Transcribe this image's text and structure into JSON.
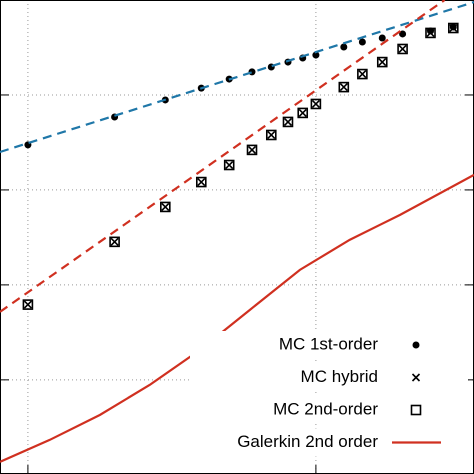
{
  "chart_data": {
    "type": "line",
    "log_x": true,
    "log_y": true,
    "grid": true,
    "legend": "lower right",
    "xlim": [
      0.8,
      35.4
    ],
    "ylim": [
      0.000102,
      10
    ],
    "xticks": [
      1,
      10
    ],
    "yticks": [
      0.001,
      0.01,
      0.1,
      1
    ],
    "series": [
      {
        "name": "MC 1st-order",
        "style": "dot",
        "color": "#000000",
        "x": [
          1,
          2,
          3,
          4,
          5,
          6,
          7,
          8,
          9,
          10,
          12.5,
          14.5,
          17,
          20,
          25,
          30
        ],
        "values": [
          0.298,
          0.586,
          0.886,
          1.18,
          1.47,
          1.75,
          1.97,
          2.22,
          2.45,
          2.63,
          3.2,
          3.61,
          3.98,
          4.39,
          4.72,
          5.2
        ]
      },
      {
        "name": "MC hybrid",
        "style": "cross",
        "color": "#000000",
        "x": [
          1,
          2,
          3,
          4,
          5,
          6,
          7,
          8,
          9,
          10,
          12.5,
          14.5,
          17,
          20,
          25,
          30
        ],
        "values": [
          0.0062,
          0.0284,
          0.0662,
          0.121,
          0.183,
          0.264,
          0.379,
          0.52,
          0.647,
          0.804,
          1.21,
          1.66,
          2.22,
          3.05,
          4.5,
          5.07
        ]
      },
      {
        "name": "MC 2nd-order",
        "style": "box",
        "color": "#000000",
        "x": [
          1,
          2,
          3,
          4,
          5,
          6,
          7,
          8,
          9,
          10,
          12.5,
          14.5,
          17,
          20,
          25,
          30
        ],
        "values": [
          0.0062,
          0.0284,
          0.0662,
          0.121,
          0.183,
          0.264,
          0.379,
          0.52,
          0.647,
          0.804,
          1.21,
          1.66,
          2.22,
          3.05,
          4.5,
          5.07
        ]
      },
      {
        "name": "Galerkin 2nd order",
        "style": "solid",
        "color": "#d03020",
        "x": [
          0.8,
          1.19,
          1.78,
          2.65,
          3.96,
          5.9,
          8.8,
          13.1,
          19.6,
          35.4
        ],
        "values": [
          0.000137,
          0.000233,
          0.000428,
          0.000886,
          0.00207,
          0.00546,
          0.0144,
          0.0298,
          0.0546,
          0.144
        ]
      },
      {
        "style": "dashed",
        "color": "#1f77a8",
        "x": [
          0.8,
          35.4
        ],
        "values": [
          0.251,
          9.51
        ]
      },
      {
        "style": "dashed",
        "color": "#d03020",
        "x": [
          0.8,
          28
        ],
        "values": [
          0.0052,
          10
        ]
      }
    ]
  }
}
